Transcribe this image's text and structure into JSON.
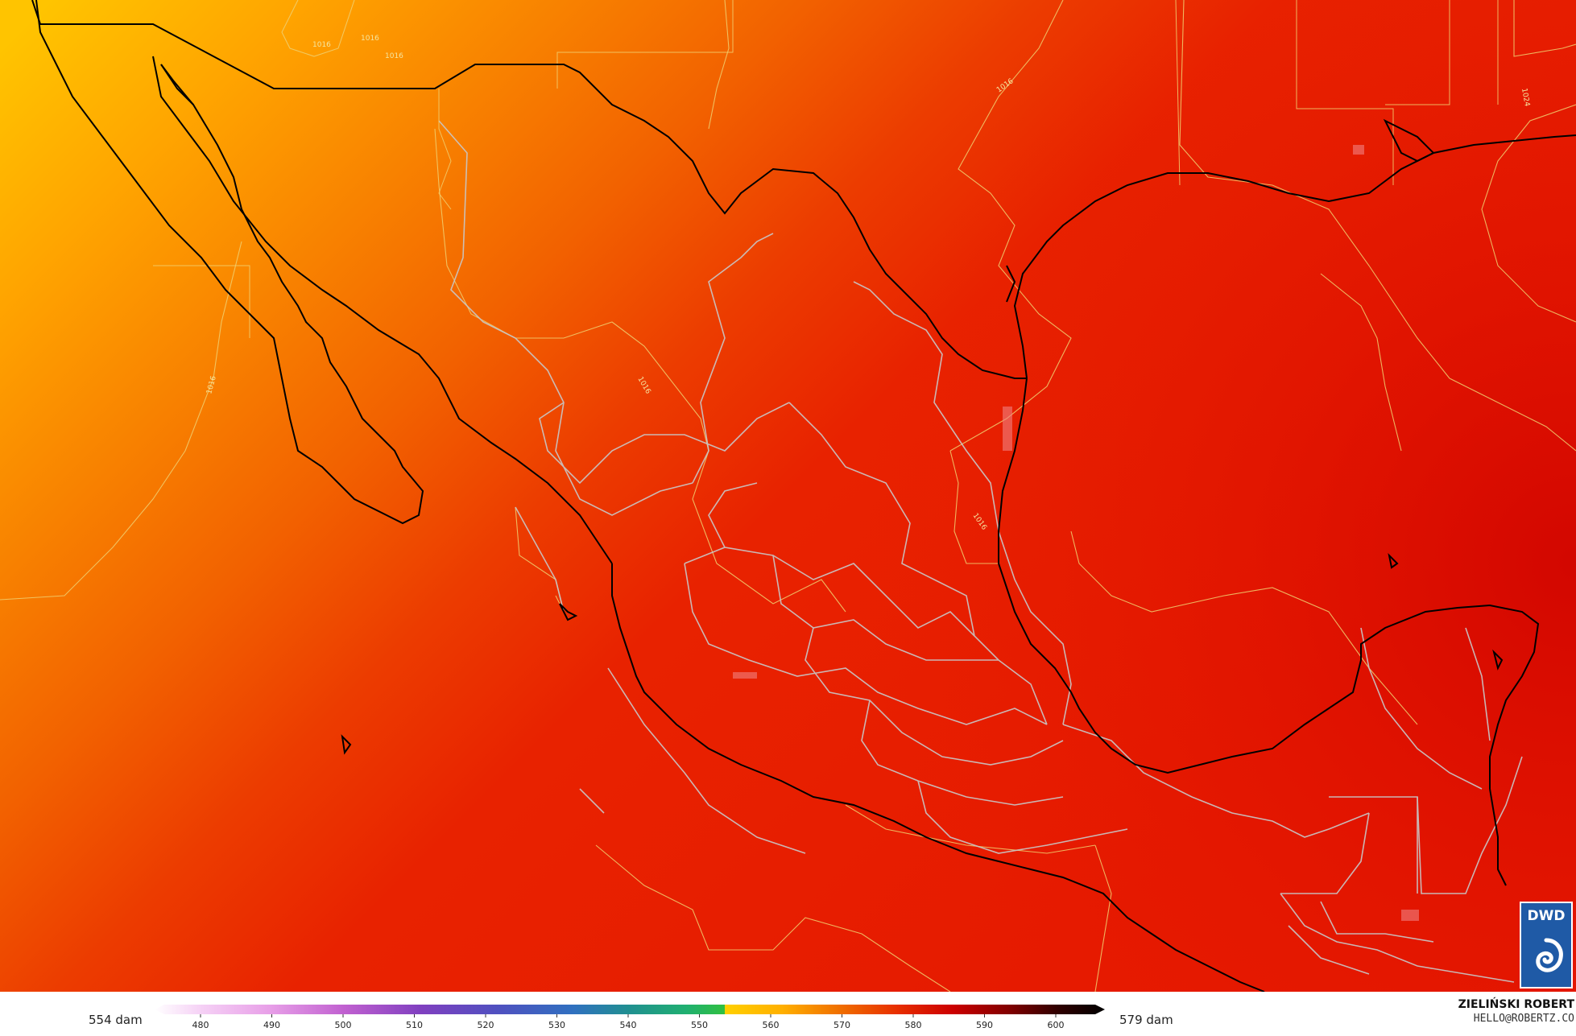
{
  "map": {
    "contour_labels": [
      "1016",
      "1016",
      "1016",
      "1016",
      "1016",
      "1016",
      "1016",
      "1024"
    ]
  },
  "legend": {
    "min_label": "554 dam",
    "max_label": "579 dam",
    "ticks": [
      "480",
      "490",
      "500",
      "510",
      "520",
      "530",
      "540",
      "550",
      "560",
      "570",
      "580",
      "590",
      "600"
    ]
  },
  "credit": {
    "name": "ZIELIŃSKI ROBERT",
    "email": "HELLO@ROBERTZ.CO"
  },
  "logo": {
    "text": "DWD"
  },
  "colors": {
    "field_low": "#ffc000",
    "field_mid": "#f47a00",
    "field_high": "#e81a00",
    "field_max": "#d40000",
    "coastline": "#000000",
    "borders": "#c8c8c8",
    "isobars": "#f0d070"
  }
}
